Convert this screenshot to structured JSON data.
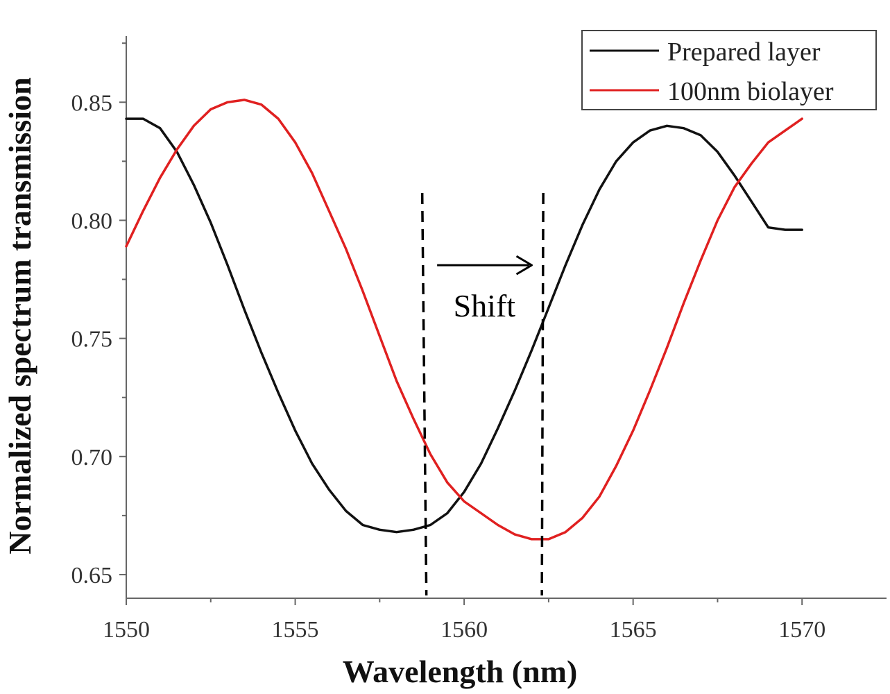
{
  "chart_data": {
    "type": "line",
    "title": "",
    "xlabel": "Wavelength (nm)",
    "ylabel": "Normalized spectrum transmission",
    "xlim": [
      1550,
      1572.5
    ],
    "ylim": [
      0.64,
      0.878
    ],
    "xticks": [
      1550,
      1555,
      1560,
      1565,
      1570
    ],
    "xtick_labels": [
      "1550",
      "1555",
      "1560",
      "1565",
      "1570"
    ],
    "yticks": [
      0.65,
      0.7,
      0.75,
      0.8,
      0.85
    ],
    "ytick_labels": [
      "0.65",
      "0.70",
      "0.75",
      "0.80",
      "0.85"
    ],
    "legend_position": "top-right",
    "series": [
      {
        "name": "Prepared layer",
        "color": "#111111",
        "x": [
          1550,
          1550.5,
          1551,
          1551.5,
          1552,
          1552.5,
          1553,
          1553.5,
          1554,
          1554.5,
          1555,
          1555.5,
          1556,
          1556.5,
          1557,
          1557.5,
          1558,
          1558.5,
          1559,
          1559.5,
          1560,
          1560.5,
          1561,
          1561.5,
          1562,
          1562.5,
          1563,
          1563.5,
          1564,
          1564.5,
          1565,
          1565.5,
          1566,
          1566.5,
          1567,
          1567.5,
          1568,
          1568.5,
          1569,
          1569.5,
          1570
        ],
        "y": [
          0.843,
          0.843,
          0.839,
          0.829,
          0.815,
          0.799,
          0.781,
          0.762,
          0.744,
          0.727,
          0.711,
          0.697,
          0.686,
          0.677,
          0.671,
          0.669,
          0.668,
          0.669,
          0.671,
          0.676,
          0.685,
          0.697,
          0.712,
          0.728,
          0.745,
          0.763,
          0.781,
          0.798,
          0.813,
          0.825,
          0.833,
          0.838,
          0.84,
          0.839,
          0.836,
          0.829,
          0.819,
          0.808,
          0.797,
          0.796,
          0.796
        ]
      },
      {
        "name": "100nm biolayer",
        "color": "#e02020",
        "x": [
          1550,
          1550.5,
          1551,
          1551.5,
          1552,
          1552.5,
          1553,
          1553.5,
          1554,
          1554.5,
          1555,
          1555.5,
          1556,
          1556.5,
          1557,
          1557.5,
          1558,
          1558.5,
          1559,
          1559.5,
          1560,
          1560.5,
          1561,
          1561.5,
          1562,
          1562.5,
          1563,
          1563.5,
          1564,
          1564.5,
          1565,
          1565.5,
          1566,
          1566.5,
          1567,
          1567.5,
          1568,
          1568.5,
          1569,
          1569.5,
          1570
        ],
        "y": [
          0.789,
          0.804,
          0.818,
          0.83,
          0.84,
          0.847,
          0.85,
          0.851,
          0.849,
          0.843,
          0.833,
          0.82,
          0.804,
          0.788,
          0.77,
          0.751,
          0.732,
          0.716,
          0.701,
          0.689,
          0.681,
          0.676,
          0.671,
          0.667,
          0.665,
          0.665,
          0.668,
          0.674,
          0.683,
          0.696,
          0.711,
          0.728,
          0.746,
          0.765,
          0.783,
          0.8,
          0.814,
          0.824,
          0.833,
          0.838,
          0.843
        ]
      }
    ],
    "annotations": {
      "shift_label": "Shift",
      "dashed_lines_x": [
        1558.8,
        1562.3
      ],
      "arrow_from_x": 1559.2,
      "arrow_to_x": 1562.0,
      "arrow_y": 0.781
    }
  }
}
